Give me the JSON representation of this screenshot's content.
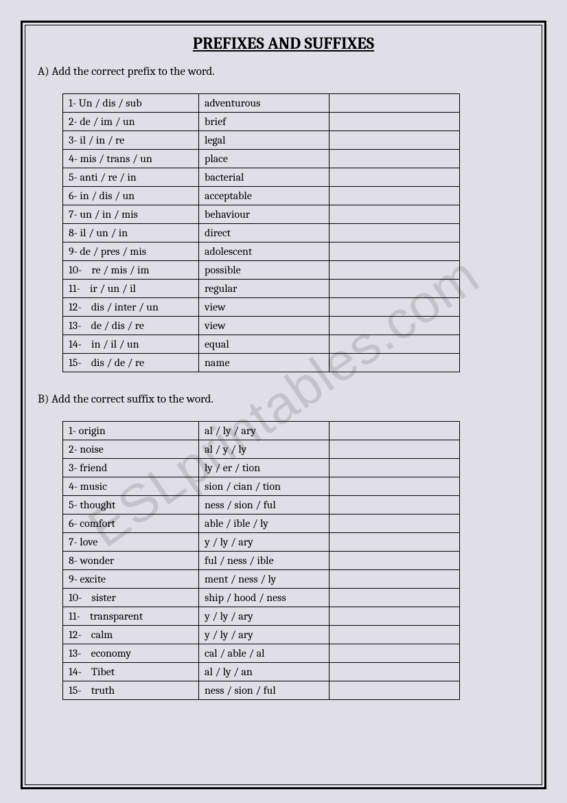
{
  "title": "PREFIXES AND SUFFIXES",
  "watermark": "ESLprintables.com",
  "sectionA": {
    "prompt": "A) Add the correct prefix to the word.",
    "columns": {
      "col1_width": 198,
      "col2_width": 190,
      "col3_width": 190
    },
    "rows": [
      {
        "n": "1-",
        "opts": "Un / dis / sub",
        "word": "adventurous"
      },
      {
        "n": "2-",
        "opts": "de / im / un",
        "word": "brief"
      },
      {
        "n": "3-",
        "opts": "il / in / re",
        "word": "legal"
      },
      {
        "n": "4-",
        "opts": "mis / trans / un",
        "word": "place"
      },
      {
        "n": "5-",
        "opts": "anti / re / in",
        "word": "bacterial"
      },
      {
        "n": "6-",
        "opts": "in / dis / un",
        "word": "acceptable"
      },
      {
        "n": "7-",
        "opts": "un / in / mis",
        "word": "behaviour"
      },
      {
        "n": "8-",
        "opts": "il / un / in",
        "word": "direct"
      },
      {
        "n": "9-",
        "opts": "de / pres / mis",
        "word": "adolescent"
      },
      {
        "n": "10-",
        "opts": "re / mis / im",
        "word": "possible",
        "indent": true
      },
      {
        "n": "11-",
        "opts": "ir / un / il",
        "word": "regular",
        "indent": true
      },
      {
        "n": "12-",
        "opts": "dis / inter / un",
        "word": "view",
        "indent": true
      },
      {
        "n": "13-",
        "opts": "de / dis / re",
        "word": "view",
        "indent": true
      },
      {
        "n": "14-",
        "opts": "in / il / un",
        "word": "equal",
        "indent": true
      },
      {
        "n": "15-",
        "opts": "dis / de / re",
        "word": "name",
        "indent": true
      }
    ]
  },
  "sectionB": {
    "prompt": "B) Add the correct suffix to the word.",
    "columns": {
      "col1_width": 198,
      "col2_width": 190,
      "col3_width": 190
    },
    "rows": [
      {
        "n": "1-",
        "word": "origin",
        "opts": "al / ly / ary"
      },
      {
        "n": "2-",
        "word": "noise",
        "opts": "al / y / ly"
      },
      {
        "n": "3-",
        "word": "friend",
        "opts": "ly / er / tion"
      },
      {
        "n": "4-",
        "word": "music",
        "opts": "sion / cian / tion"
      },
      {
        "n": "5-",
        "word": "thought",
        "opts": "ness / sion / ful"
      },
      {
        "n": "6-",
        "word": "comfort",
        "opts": "able / ible / ly"
      },
      {
        "n": "7-",
        "word": "love",
        "opts": "y / ly / ary"
      },
      {
        "n": "8-",
        "word": "wonder",
        "opts": "ful / ness / ible"
      },
      {
        "n": "9-",
        "word": "excite",
        "opts": "ment / ness / ly"
      },
      {
        "n": "10-",
        "word": "sister",
        "opts": "ship / hood / ness",
        "indent": true
      },
      {
        "n": "11-",
        "word": "transparent",
        "opts": "y / ly / ary",
        "indent": true
      },
      {
        "n": "12-",
        "word": "calm",
        "opts": "y / ly / ary",
        "indent": true
      },
      {
        "n": "13-",
        "word": "economy",
        "opts": "cal / able / al",
        "indent": true
      },
      {
        "n": "14-",
        "word": "Tibet",
        "opts": "al / ly / an",
        "indent": true
      },
      {
        "n": "15-",
        "word": "truth",
        "opts": "ness / sion / ful",
        "indent": true
      }
    ]
  }
}
